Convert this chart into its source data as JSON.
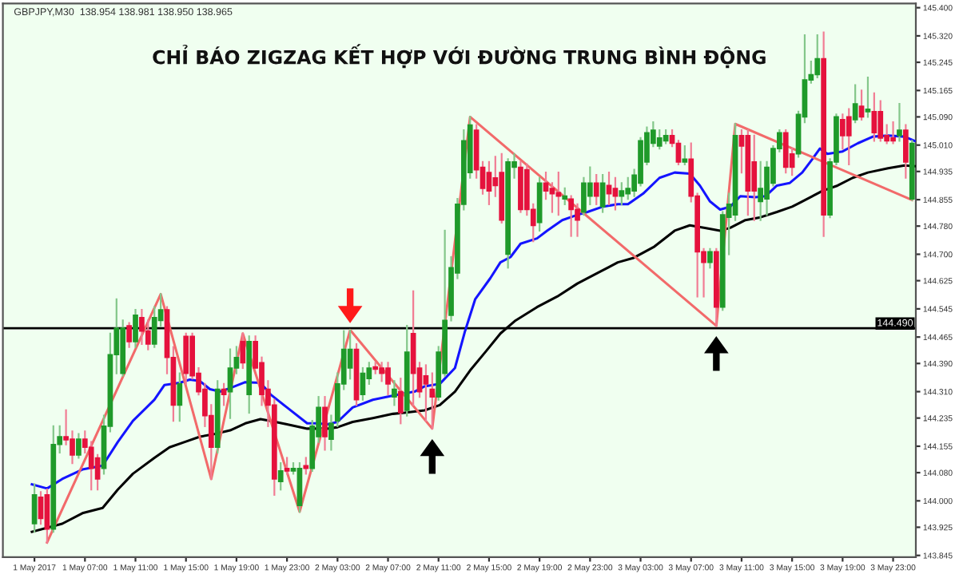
{
  "chart_data": {
    "type": "candlestick",
    "title": "CHỈ BÁO ZIGZAG KẾT HỢP VỚI ĐƯỜNG TRUNG BÌNH ĐỘNG",
    "annotations": [
      "GBPJPY,M30  138.954 138.981 138.950 138.965"
    ],
    "xlim": [
      "2017-05-01T00:30",
      "2017-05-04T00:48"
    ],
    "xticks": [
      {
        "value": "2017-05-01T03:00",
        "label": "1 May 2017"
      },
      {
        "value": "2017-05-01T07:00",
        "label": "1 May 07:00"
      },
      {
        "value": "2017-05-01T11:00",
        "label": "1 May 11:00"
      },
      {
        "value": "2017-05-01T15:00",
        "label": "1 May 15:00"
      },
      {
        "value": "2017-05-01T19:00",
        "label": "1 May 19:00"
      },
      {
        "value": "2017-05-01T23:00",
        "label": "1 May 23:00"
      },
      {
        "value": "2017-05-02T03:00",
        "label": "2 May 03:00"
      },
      {
        "value": "2017-05-02T07:00",
        "label": "2 May 07:00"
      },
      {
        "value": "2017-05-02T11:00",
        "label": "2 May 11:00"
      },
      {
        "value": "2017-05-02T15:00",
        "label": "2 May 15:00"
      },
      {
        "value": "2017-05-02T19:00",
        "label": "2 May 19:00"
      },
      {
        "value": "2017-05-02T23:00",
        "label": "2 May 23:00"
      },
      {
        "value": "2017-05-03T03:00",
        "label": "3 May 03:00"
      },
      {
        "value": "2017-05-03T07:00",
        "label": "3 May 07:00"
      },
      {
        "value": "2017-05-03T11:00",
        "label": "3 May 11:00"
      },
      {
        "value": "2017-05-03T15:00",
        "label": "3 May 15:00"
      },
      {
        "value": "2017-05-03T19:00",
        "label": "3 May 19:00"
      },
      {
        "value": "2017-05-03T23:00",
        "label": "3 May 23:00"
      }
    ],
    "ylim": [
      143.84,
      145.412
    ],
    "yticks": [
      {
        "value": 145.4,
        "label": "145.400"
      },
      {
        "value": 145.32,
        "label": "145.320"
      },
      {
        "value": 145.245,
        "label": "145.245"
      },
      {
        "value": 145.165,
        "label": "145.165"
      },
      {
        "value": 145.09,
        "label": "145.090"
      },
      {
        "value": 145.01,
        "label": "145.010"
      },
      {
        "value": 144.935,
        "label": "144.935"
      },
      {
        "value": 144.855,
        "label": "144.855"
      },
      {
        "value": 144.78,
        "label": "144.780"
      },
      {
        "value": 144.7,
        "label": "144.700"
      },
      {
        "value": 144.625,
        "label": "144.625"
      },
      {
        "value": 144.545,
        "label": "144.545"
      },
      {
        "value": 144.465,
        "label": "144.465"
      },
      {
        "value": 144.39,
        "label": "144.390"
      },
      {
        "value": 144.31,
        "label": "144.310"
      },
      {
        "value": 144.235,
        "label": "144.235"
      },
      {
        "value": 144.155,
        "label": "144.155"
      },
      {
        "value": 144.08,
        "label": "144.080"
      },
      {
        "value": 144.0,
        "label": "144.000"
      },
      {
        "value": 143.925,
        "label": "143.925"
      },
      {
        "value": 143.845,
        "label": "143.845"
      }
    ],
    "ref_lines": [
      {
        "axis": "y",
        "value": 144.49,
        "label": "144.490",
        "color": "#000000"
      }
    ],
    "series": [
      {
        "type": "candlestick",
        "colors": [
          "#1f9a2a",
          "#e5123d",
          "#e5123d",
          "#1f9a2a",
          "#1f9a2a",
          "#e5123d",
          "#e5123d",
          "#1f9a2a",
          "#e5123d",
          "#e5123d",
          "#e5123d",
          "#1f9a2a",
          "#1f9a2a",
          "#1f9a2a",
          "#1f9a2a",
          "#e5123d",
          "#1f9a2a",
          "#e5123d",
          "#e5123d",
          "#1f9a2a",
          "#1f9a2a",
          "#e5123d",
          "#e5123d",
          "#1f9a2a",
          "#e5123d",
          "#e5123d",
          "#e5123d",
          "#e5123d",
          "#e5123d",
          "#1f9a2a",
          "#e5123d",
          "#1f9a2a",
          "#1f9a2a",
          "#e5123d",
          "#1f9a2a",
          "#e5123d",
          "#e5123d",
          "#e5123d",
          "#e5123d",
          "#1f9a2a",
          "#e5123d",
          "#1f9a2a",
          "#1f9a2a",
          "#e5123d",
          "#1f9a2a",
          "#1f9a2a",
          "#e5123d",
          "#1f9a2a",
          "#1f9a2a",
          "#1f9a2a",
          "#1f9a2a",
          "#e5123d",
          "#1f9a2a",
          "#1f9a2a",
          "#e5123d",
          "#e5123d",
          "#e5123d",
          "#1f9a2a",
          "#e5123d",
          "#1f9a2a",
          "#e5123d",
          "#e5123d",
          "#e5123d",
          "#e5123d",
          "#1f9a2a",
          "#1f9a2a",
          "#1f9a2a",
          "#1f9a2a",
          "#1f9a2a",
          "#1f9a2a",
          "#e5123d",
          "#e5123d",
          "#e5123d",
          "#e5123d",
          "#e5123d",
          "#1f9a2a",
          "#1f9a2a",
          "#e5123d",
          "#e5123d",
          "#e5123d",
          "#1f9a2a",
          "#e5123d",
          "#e5123d",
          "#e5123d",
          "#1f9a2a",
          "#e5123d",
          "#e5123d",
          "#1f9a2a",
          "#1f9a2a",
          "#e5123d",
          "#1f9a2a",
          "#e5123d",
          "#e5123d",
          "#1f9a2a",
          "#1f9a2a",
          "#1f9a2a",
          "#1f9a2a",
          "#1f9a2a",
          "#1f9a2a",
          "#1f9a2a",
          "#1f9a2a",
          "#e5123d",
          "#e5123d",
          "#1f9a2a",
          "#e5123d",
          "#e5123d",
          "#e5123d",
          "#1f9a2a",
          "#e5123d",
          "#1f9a2a",
          "#1f9a2a",
          "#1f9a2a",
          "#e5123d",
          "#e5123d",
          "#e5123d",
          "#1f9a2a",
          "#1f9a2a",
          "#1f9a2a",
          "#1f9a2a",
          "#e5123d",
          "#e5123d",
          "#1f9a2a",
          "#1f9a2a",
          "#1f9a2a",
          "#1f9a2a",
          "#e5123d",
          "#1f9a2a",
          "#1f9a2a",
          "#e5123d",
          "#e5123d",
          "#1f9a2a",
          "#e5123d",
          "#1f9a2a",
          "#e5123d",
          "#e5123d",
          "#e5123d",
          "#e5123d",
          "#1f9a2a",
          "#e5123d",
          "#1f9a2a"
        ],
        "x": [
          "2017-05-01T03:00",
          "2017-05-01T03:30",
          "2017-05-01T04:00",
          "2017-05-01T04:30",
          "2017-05-01T05:00",
          "2017-05-01T05:30",
          "2017-05-01T06:00",
          "2017-05-01T06:30",
          "2017-05-01T07:00",
          "2017-05-01T07:30",
          "2017-05-01T08:00",
          "2017-05-01T08:30",
          "2017-05-01T09:00",
          "2017-05-01T09:30",
          "2017-05-01T10:00",
          "2017-05-01T10:30",
          "2017-05-01T11:00",
          "2017-05-01T11:30",
          "2017-05-01T12:00",
          "2017-05-01T12:30",
          "2017-05-01T13:00",
          "2017-05-01T13:30",
          "2017-05-01T14:00",
          "2017-05-01T14:30",
          "2017-05-01T15:00",
          "2017-05-01T15:30",
          "2017-05-01T16:00",
          "2017-05-01T16:30",
          "2017-05-01T17:00",
          "2017-05-01T17:30",
          "2017-05-01T18:00",
          "2017-05-01T18:30",
          "2017-05-01T19:00",
          "2017-05-01T19:30",
          "2017-05-01T20:00",
          "2017-05-01T20:30",
          "2017-05-01T21:00",
          "2017-05-01T21:30",
          "2017-05-01T22:00",
          "2017-05-01T22:30",
          "2017-05-01T23:00",
          "2017-05-01T23:30",
          "2017-05-02T00:00",
          "2017-05-02T00:30",
          "2017-05-02T01:00",
          "2017-05-02T01:30",
          "2017-05-02T02:00",
          "2017-05-02T02:30",
          "2017-05-02T03:00",
          "2017-05-02T03:30",
          "2017-05-02T04:00",
          "2017-05-02T04:30",
          "2017-05-02T05:00",
          "2017-05-02T05:30",
          "2017-05-02T06:00",
          "2017-05-02T06:30",
          "2017-05-02T07:00",
          "2017-05-02T07:30",
          "2017-05-02T08:00",
          "2017-05-02T08:30",
          "2017-05-02T09:00",
          "2017-05-02T09:30",
          "2017-05-02T10:00",
          "2017-05-02T10:30",
          "2017-05-02T11:00",
          "2017-05-02T11:30",
          "2017-05-02T12:00",
          "2017-05-02T12:30",
          "2017-05-02T13:00",
          "2017-05-02T13:30",
          "2017-05-02T14:00",
          "2017-05-02T14:30",
          "2017-05-02T15:00",
          "2017-05-02T15:30",
          "2017-05-02T16:00",
          "2017-05-02T16:30",
          "2017-05-02T17:00",
          "2017-05-02T17:30",
          "2017-05-02T18:00",
          "2017-05-02T18:30",
          "2017-05-02T19:00",
          "2017-05-02T19:30",
          "2017-05-02T20:00",
          "2017-05-02T20:30",
          "2017-05-02T21:00",
          "2017-05-02T21:30",
          "2017-05-02T22:00",
          "2017-05-02T22:30",
          "2017-05-02T23:00",
          "2017-05-02T23:30",
          "2017-05-03T00:00",
          "2017-05-03T00:30",
          "2017-05-03T01:00",
          "2017-05-03T01:30",
          "2017-05-03T02:00",
          "2017-05-03T02:30",
          "2017-05-03T03:00",
          "2017-05-03T03:30",
          "2017-05-03T04:00",
          "2017-05-03T04:30",
          "2017-05-03T05:00",
          "2017-05-03T05:30",
          "2017-05-03T06:00",
          "2017-05-03T06:30",
          "2017-05-03T07:00",
          "2017-05-03T07:30",
          "2017-05-03T08:00",
          "2017-05-03T08:30",
          "2017-05-03T09:00",
          "2017-05-03T09:30",
          "2017-05-03T10:00",
          "2017-05-03T10:30",
          "2017-05-03T11:00",
          "2017-05-03T11:30",
          "2017-05-03T12:00",
          "2017-05-03T12:30",
          "2017-05-03T13:00",
          "2017-05-03T13:30",
          "2017-05-03T14:00",
          "2017-05-03T14:30",
          "2017-05-03T15:00",
          "2017-05-03T15:30",
          "2017-05-03T16:00",
          "2017-05-03T16:30",
          "2017-05-03T17:00",
          "2017-05-03T17:30",
          "2017-05-03T18:00",
          "2017-05-03T18:30",
          "2017-05-03T19:00",
          "2017-05-03T19:30",
          "2017-05-03T20:00",
          "2017-05-03T20:30",
          "2017-05-03T21:00",
          "2017-05-03T21:30",
          "2017-05-03T22:00",
          "2017-05-03T22:30",
          "2017-05-03T23:00",
          "2017-05-03T23:30",
          "2017-05-04T00:00",
          "2017-05-04T00:30"
        ],
        "ohlc": [
          [
            143.935,
            144.047,
            143.912,
            144.017
          ],
          [
            144.01,
            144.025,
            143.935,
            143.95
          ],
          [
            144.017,
            144.032,
            143.882,
            143.92
          ],
          [
            143.92,
            144.212,
            143.912,
            144.16
          ],
          [
            144.16,
            144.212,
            144.137,
            144.182
          ],
          [
            144.182,
            144.257,
            144.16,
            144.173
          ],
          [
            144.175,
            144.197,
            144.107,
            144.13
          ],
          [
            144.13,
            144.19,
            144.122,
            144.175
          ],
          [
            144.175,
            144.197,
            144.137,
            144.152
          ],
          [
            144.152,
            144.167,
            144.032,
            144.092
          ],
          [
            144.122,
            144.13,
            144.032,
            144.062
          ],
          [
            144.092,
            144.242,
            144.077,
            144.212
          ],
          [
            144.212,
            144.475,
            144.197,
            144.415
          ],
          [
            144.415,
            144.572,
            144.362,
            144.49
          ],
          [
            144.362,
            144.512,
            144.355,
            144.49
          ],
          [
            144.497,
            144.505,
            144.437,
            144.452
          ],
          [
            144.452,
            144.542,
            144.437,
            144.527
          ],
          [
            144.52,
            144.542,
            144.445,
            144.482
          ],
          [
            144.482,
            144.512,
            144.43,
            144.445
          ],
          [
            144.445,
            144.55,
            144.437,
            144.52
          ],
          [
            144.512,
            144.587,
            144.497,
            144.542
          ],
          [
            144.542,
            144.55,
            144.362,
            144.407
          ],
          [
            144.407,
            144.437,
            144.227,
            144.272
          ],
          [
            144.272,
            144.362,
            144.227,
            144.332
          ],
          [
            144.467,
            144.475,
            144.332,
            144.362
          ],
          [
            144.467,
            144.475,
            144.347,
            144.355
          ],
          [
            144.362,
            144.377,
            144.302,
            144.31
          ],
          [
            144.317,
            144.332,
            144.212,
            144.242
          ],
          [
            144.242,
            144.272,
            144.062,
            144.152
          ],
          [
            144.152,
            144.34,
            144.137,
            144.317
          ],
          [
            144.317,
            144.332,
            144.272,
            144.302
          ],
          [
            144.31,
            144.43,
            144.235,
            144.377
          ],
          [
            144.377,
            144.437,
            144.362,
            144.407
          ],
          [
            144.452,
            144.475,
            144.377,
            144.392
          ],
          [
            144.302,
            144.467,
            144.25,
            144.452
          ],
          [
            144.452,
            144.467,
            144.377,
            144.377
          ],
          [
            144.392,
            144.407,
            144.272,
            144.302
          ],
          [
            144.317,
            144.34,
            144.212,
            144.272
          ],
          [
            144.272,
            144.287,
            144.017,
            144.062
          ],
          [
            144.055,
            144.107,
            144.032,
            144.085
          ],
          [
            144.092,
            144.122,
            144.077,
            144.085
          ],
          [
            144.085,
            144.107,
            144.077,
            144.092
          ],
          [
            143.987,
            144.107,
            143.969,
            144.092
          ],
          [
            144.1,
            144.122,
            144.077,
            144.092
          ],
          [
            144.092,
            144.227,
            144.085,
            144.212
          ],
          [
            144.182,
            144.295,
            144.167,
            144.265
          ],
          [
            144.265,
            144.295,
            144.145,
            144.182
          ],
          [
            144.175,
            144.242,
            144.145,
            144.22
          ],
          [
            144.227,
            144.362,
            144.212,
            144.332
          ],
          [
            144.332,
            144.482,
            144.317,
            144.43
          ],
          [
            144.377,
            144.485,
            144.347,
            144.43
          ],
          [
            144.43,
            144.445,
            144.272,
            144.287
          ],
          [
            144.302,
            144.377,
            144.287,
            144.362
          ],
          [
            144.347,
            144.392,
            144.332,
            144.377
          ],
          [
            144.38,
            144.392,
            144.362,
            144.374
          ],
          [
            144.377,
            144.392,
            144.34,
            144.362
          ],
          [
            144.377,
            144.392,
            144.302,
            144.332
          ],
          [
            144.295,
            144.34,
            144.272,
            144.317
          ],
          [
            144.31,
            144.347,
            144.22,
            144.25
          ],
          [
            144.257,
            144.497,
            144.242,
            144.422
          ],
          [
            144.475,
            144.595,
            144.272,
            144.362
          ],
          [
            144.377,
            144.392,
            144.295,
            144.31
          ],
          [
            144.355,
            144.385,
            144.227,
            144.332
          ],
          [
            144.317,
            144.362,
            144.205,
            144.295
          ],
          [
            144.295,
            144.437,
            144.287,
            144.422
          ],
          [
            144.362,
            144.767,
            144.355,
            144.512
          ],
          [
            144.527,
            144.692,
            144.512,
            144.662
          ],
          [
            144.647,
            144.857,
            144.632,
            144.842
          ],
          [
            144.842,
            145.052,
            144.827,
            145.022
          ],
          [
            144.932,
            145.09,
            144.917,
            145.067
          ],
          [
            145.052,
            145.067,
            144.917,
            144.94
          ],
          [
            144.947,
            144.962,
            144.872,
            144.887
          ],
          [
            144.932,
            144.962,
            144.842,
            144.88
          ],
          [
            144.917,
            144.977,
            144.865,
            144.895
          ],
          [
            144.932,
            144.985,
            144.79,
            144.797
          ],
          [
            144.7,
            144.97,
            144.662,
            144.962
          ],
          [
            144.947,
            144.985,
            144.917,
            144.962
          ],
          [
            144.947,
            144.962,
            144.82,
            144.827
          ],
          [
            144.94,
            144.955,
            144.812,
            144.827
          ],
          [
            144.827,
            144.842,
            144.737,
            144.782
          ],
          [
            144.79,
            144.917,
            144.767,
            144.902
          ],
          [
            144.902,
            144.932,
            144.857,
            144.88
          ],
          [
            144.887,
            144.902,
            144.82,
            144.872
          ],
          [
            144.875,
            144.932,
            144.812,
            144.865
          ],
          [
            144.857,
            144.887,
            144.842,
            144.865
          ],
          [
            144.857,
            144.865,
            144.752,
            144.827
          ],
          [
            144.827,
            144.842,
            144.752,
            144.797
          ],
          [
            144.82,
            144.917,
            144.812,
            144.902
          ],
          [
            144.865,
            144.947,
            144.842,
            144.902
          ],
          [
            144.902,
            144.925,
            144.842,
            144.865
          ],
          [
            144.835,
            144.925,
            144.82,
            144.902
          ],
          [
            144.895,
            144.932,
            144.842,
            144.872
          ],
          [
            144.887,
            144.917,
            144.827,
            144.865
          ],
          [
            144.865,
            144.902,
            144.842,
            144.88
          ],
          [
            144.872,
            144.917,
            144.857,
            144.887
          ],
          [
            144.88,
            144.94,
            144.865,
            144.925
          ],
          [
            144.902,
            145.03,
            144.895,
            145.022
          ],
          [
            144.962,
            145.06,
            144.955,
            145.045
          ],
          [
            145.015,
            145.075,
            145.007,
            145.052
          ],
          [
            145.007,
            145.052,
            145.0,
            145.03
          ],
          [
            145.022,
            145.052,
            145.015,
            145.037
          ],
          [
            145.037,
            145.052,
            145.007,
            145.015
          ],
          [
            145.015,
            145.022,
            144.955,
            144.962
          ],
          [
            144.962,
            145.007,
            144.955,
            144.97
          ],
          [
            144.97,
            145.015,
            144.85,
            144.865
          ],
          [
            144.865,
            144.872,
            144.58,
            144.707
          ],
          [
            144.707,
            144.715,
            144.58,
            144.677
          ],
          [
            144.677,
            144.715,
            144.662,
            144.707
          ],
          [
            144.707,
            144.715,
            144.497,
            144.55
          ],
          [
            144.55,
            144.82,
            144.542,
            144.812
          ],
          [
            144.805,
            144.872,
            144.7,
            144.842
          ],
          [
            144.812,
            145.07,
            144.797,
            145.037
          ],
          [
            145.037,
            145.052,
            144.932,
            145.007
          ],
          [
            145.037,
            145.052,
            144.812,
            144.88
          ],
          [
            144.962,
            145.037,
            144.797,
            144.88
          ],
          [
            144.85,
            144.962,
            144.797,
            144.887
          ],
          [
            144.857,
            144.962,
            144.812,
            144.947
          ],
          [
            144.902,
            145.007,
            144.895,
            145.0
          ],
          [
            145.0,
            145.052,
            144.992,
            145.045
          ],
          [
            145.045,
            145.052,
            144.932,
            144.947
          ],
          [
            144.985,
            145.0,
            144.925,
            144.947
          ],
          [
            144.985,
            145.105,
            144.977,
            145.097
          ],
          [
            145.09,
            145.322,
            145.075,
            145.195
          ],
          [
            145.195,
            145.247,
            145.187,
            145.21
          ],
          [
            145.21,
            145.322,
            145.202,
            145.255
          ],
          [
            145.255,
            145.33,
            144.752,
            144.812
          ],
          [
            144.812,
            144.97,
            144.805,
            144.962
          ],
          [
            144.962,
            145.097,
            144.955,
            145.09
          ],
          [
            145.082,
            145.097,
            145.0,
            145.037
          ],
          [
            145.09,
            145.112,
            144.955,
            145.037
          ],
          [
            145.082,
            145.18,
            145.075,
            145.127
          ],
          [
            145.12,
            145.165,
            145.082,
            145.09
          ],
          [
            145.105,
            145.202,
            145.09,
            145.112
          ],
          [
            145.105,
            145.157,
            145.022,
            145.045
          ],
          [
            145.105,
            145.135,
            145.022,
            145.03
          ],
          [
            145.037,
            145.067,
            145.015,
            145.022
          ],
          [
            145.03,
            145.075,
            145.015,
            145.022
          ],
          [
            145.037,
            145.127,
            145.022,
            145.052
          ],
          [
            145.052,
            145.067,
            144.917,
            144.962
          ],
          [
            144.857,
            145.022,
            144.854,
            145.015
          ]
        ]
      },
      {
        "type": "line",
        "color": "#1414ff",
        "x": [
          "2017-05-01T02:48",
          "2017-05-01T04:00",
          "2017-05-01T05:12",
          "2017-05-01T06:48",
          "2017-05-01T08:24",
          "2017-05-01T09:36",
          "2017-05-01T10:48",
          "2017-05-01T12:30",
          "2017-05-01T13:18",
          "2017-05-01T14:30",
          "2017-05-01T15:18",
          "2017-05-01T16:06",
          "2017-05-01T16:54",
          "2017-05-01T17:42",
          "2017-05-01T18:30",
          "2017-05-01T19:42",
          "2017-05-01T20:54",
          "2017-05-01T21:42",
          "2017-05-01T23:00",
          "2017-05-02T00:36",
          "2017-05-02T01:24",
          "2017-05-02T02:12",
          "2017-05-02T03:00",
          "2017-05-02T04:12",
          "2017-05-02T05:48",
          "2017-05-02T07:24",
          "2017-05-02T09:06",
          "2017-05-02T09:54",
          "2017-05-02T11:06",
          "2017-05-02T12:18",
          "2017-05-02T13:06",
          "2017-05-02T13:54",
          "2017-05-02T15:06",
          "2017-05-02T15:54",
          "2017-05-02T16:42",
          "2017-05-02T17:30",
          "2017-05-02T18:48",
          "2017-05-02T19:36",
          "2017-05-02T20:48",
          "2017-05-02T22:00",
          "2017-05-02T22:48",
          "2017-05-03T00:00",
          "2017-05-03T01:12",
          "2017-05-03T02:00",
          "2017-05-03T03:12",
          "2017-05-03T04:30",
          "2017-05-03T05:42",
          "2017-05-03T06:54",
          "2017-05-03T07:42",
          "2017-05-03T08:30",
          "2017-05-03T09:18",
          "2017-05-03T10:06",
          "2017-05-03T10:54",
          "2017-05-03T12:06",
          "2017-05-03T12:54",
          "2017-05-03T13:48",
          "2017-05-03T14:48",
          "2017-05-03T15:48",
          "2017-05-03T16:36",
          "2017-05-03T17:12",
          "2017-05-03T17:48",
          "2017-05-03T19:00",
          "2017-05-03T20:12",
          "2017-05-03T21:24",
          "2017-05-03T22:36",
          "2017-05-03T23:54",
          "2017-05-04T00:42"
        ],
        "values": [
          144.047,
          144.035,
          144.062,
          144.089,
          144.1,
          144.167,
          144.227,
          144.287,
          144.329,
          144.335,
          144.344,
          144.34,
          144.317,
          144.31,
          144.32,
          144.337,
          144.335,
          144.302,
          144.265,
          144.22,
          144.22,
          144.217,
          144.224,
          144.265,
          144.287,
          144.299,
          144.31,
          144.325,
          144.332,
          144.377,
          144.482,
          144.572,
          144.632,
          144.677,
          144.692,
          144.73,
          144.745,
          144.767,
          144.797,
          144.812,
          144.82,
          144.835,
          144.842,
          144.842,
          144.872,
          144.917,
          144.932,
          144.929,
          144.895,
          144.85,
          144.827,
          144.835,
          144.865,
          144.862,
          144.865,
          144.895,
          144.902,
          144.932,
          144.97,
          145.0,
          144.985,
          144.992,
          145.015,
          145.034,
          145.037,
          145.034,
          145.022
        ]
      },
      {
        "type": "line",
        "color": "#000000",
        "x": [
          "2017-05-01T02:48",
          "2017-05-01T05:12",
          "2017-05-01T06:48",
          "2017-05-01T08:24",
          "2017-05-01T09:36",
          "2017-05-01T10:48",
          "2017-05-01T12:30",
          "2017-05-01T13:42",
          "2017-05-01T14:54",
          "2017-05-01T16:06",
          "2017-05-01T17:18",
          "2017-05-01T18:30",
          "2017-05-01T19:42",
          "2017-05-01T20:54",
          "2017-05-01T21:42",
          "2017-05-01T23:00",
          "2017-05-02T00:36",
          "2017-05-02T02:12",
          "2017-05-02T03:00",
          "2017-05-02T04:12",
          "2017-05-02T05:48",
          "2017-05-02T07:24",
          "2017-05-02T08:18",
          "2017-05-02T09:54",
          "2017-05-02T11:06",
          "2017-05-02T12:18",
          "2017-05-02T13:30",
          "2017-05-02T14:42",
          "2017-05-02T15:54",
          "2017-05-02T17:06",
          "2017-05-02T18:48",
          "2017-05-02T20:24",
          "2017-05-02T22:00",
          "2017-05-02T23:36",
          "2017-05-03T01:12",
          "2017-05-03T02:24",
          "2017-05-03T04:06",
          "2017-05-03T05:42",
          "2017-05-03T06:54",
          "2017-05-03T08:06",
          "2017-05-03T09:18",
          "2017-05-03T10:06",
          "2017-05-03T11:18",
          "2017-05-03T12:30",
          "2017-05-03T13:48",
          "2017-05-03T15:00",
          "2017-05-03T16:12",
          "2017-05-03T17:24",
          "2017-05-03T18:36",
          "2017-05-03T19:48",
          "2017-05-03T21:00",
          "2017-05-03T22:36",
          "2017-05-03T23:54",
          "2017-05-04T00:42"
        ],
        "values": [
          143.912,
          143.935,
          143.965,
          143.98,
          144.032,
          144.077,
          144.122,
          144.152,
          144.167,
          144.182,
          144.19,
          144.2,
          144.22,
          144.232,
          144.227,
          144.217,
          144.205,
          144.205,
          144.209,
          144.224,
          144.235,
          144.247,
          144.25,
          144.257,
          144.272,
          144.31,
          144.37,
          144.422,
          144.475,
          144.512,
          144.55,
          144.58,
          144.617,
          144.647,
          144.677,
          144.689,
          144.722,
          144.767,
          144.782,
          144.775,
          144.767,
          144.775,
          144.797,
          144.805,
          144.82,
          144.835,
          144.857,
          144.88,
          144.895,
          144.917,
          144.932,
          144.944,
          144.952,
          144.95
        ]
      },
      {
        "type": "line",
        "color": "#f26a6a",
        "x": [
          "2017-05-01T04:00",
          "2017-05-01T13:00",
          "2017-05-01T17:00",
          "2017-05-01T19:30",
          "2017-05-02T00:00",
          "2017-05-02T04:00",
          "2017-05-02T10:30",
          "2017-05-02T13:30",
          "2017-05-03T09:00",
          "2017-05-03T10:30",
          "2017-05-04T00:30"
        ],
        "values": [
          143.882,
          144.587,
          144.062,
          144.475,
          143.969,
          144.485,
          144.205,
          145.09,
          144.497,
          145.07,
          144.854
        ]
      }
    ]
  }
}
